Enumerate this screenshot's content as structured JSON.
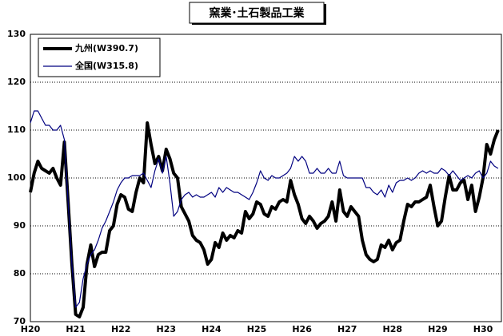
{
  "chart_data": {
    "type": "line",
    "title": "窯業･土石製品工業",
    "categories": [
      "H20",
      null,
      null,
      null,
      null,
      null,
      null,
      null,
      null,
      null,
      null,
      null,
      "H21",
      null,
      null,
      null,
      null,
      null,
      null,
      null,
      null,
      null,
      null,
      null,
      "H22",
      null,
      null,
      null,
      null,
      null,
      null,
      null,
      null,
      null,
      null,
      null,
      "H23",
      null,
      null,
      null,
      null,
      null,
      null,
      null,
      null,
      null,
      null,
      null,
      "H24",
      null,
      null,
      null,
      null,
      null,
      null,
      null,
      null,
      null,
      null,
      null,
      "H25",
      null,
      null,
      null,
      null,
      null,
      null,
      null,
      null,
      null,
      null,
      null,
      "H26",
      null,
      null,
      null,
      null,
      null,
      null,
      null,
      null,
      null,
      null,
      null,
      "H27",
      null,
      null,
      null,
      null,
      null,
      null,
      null,
      null,
      null,
      null,
      null,
      "H28",
      null,
      null,
      null,
      null,
      null,
      null,
      null,
      null,
      null,
      null,
      null,
      "H29",
      null,
      null,
      null,
      null,
      null,
      null,
      null,
      null,
      null,
      null,
      null,
      "H30",
      null,
      null,
      null,
      null
    ],
    "series": [
      {
        "name": "九州(W390.7)",
        "color": "#000000",
        "width": 4,
        "values": [
          97,
          101,
          103.5,
          102,
          101.5,
          101,
          102,
          100,
          98.5,
          107.5,
          95,
          82,
          71.5,
          71,
          73,
          82,
          86,
          81.5,
          84,
          84.5,
          84.5,
          89,
          90,
          94.5,
          96.5,
          96,
          93.5,
          93,
          97,
          100,
          99,
          111.5,
          107,
          103,
          104.5,
          101.5,
          106,
          104,
          101,
          100,
          94,
          92.5,
          91,
          88,
          87,
          86.5,
          85,
          82,
          83,
          86.5,
          85.5,
          88.5,
          87,
          88,
          87.5,
          89,
          88.5,
          93,
          91.5,
          92.5,
          95,
          94.5,
          92.5,
          92,
          94,
          93.5,
          95,
          95.5,
          95,
          99.5,
          96.5,
          94.5,
          91.5,
          90.5,
          92,
          91,
          89.5,
          90.5,
          91,
          92,
          95,
          91,
          97.5,
          93,
          92,
          94,
          93,
          92,
          87,
          84,
          83,
          82.5,
          83,
          86,
          85.5,
          87,
          85,
          86.5,
          87,
          91,
          94.5,
          94,
          95,
          95,
          95.5,
          96,
          98.5,
          94,
          90,
          91,
          96,
          100.5,
          97.5,
          97.5,
          99,
          99.5,
          95.5,
          98.5,
          93,
          96,
          100,
          107,
          105,
          108,
          110
        ]
      },
      {
        "name": "全国(W315.8)",
        "color": "#000080",
        "width": 1.2,
        "values": [
          111.5,
          114,
          114,
          112.5,
          111,
          111,
          110,
          110,
          111,
          108,
          95,
          82,
          73,
          74,
          79,
          82,
          84,
          85,
          87,
          89.5,
          91,
          93,
          95,
          97.5,
          99,
          100,
          100,
          100.5,
          100.5,
          100.5,
          101,
          99.5,
          98,
          101.5,
          104,
          101,
          104.5,
          99,
          92,
          93,
          95.5,
          96.5,
          97,
          96,
          96.5,
          96,
          96,
          96.5,
          97,
          96,
          98,
          97,
          98,
          97.5,
          97,
          97,
          96.5,
          96,
          95.5,
          97,
          99,
          101.5,
          100,
          99.5,
          100.5,
          100,
          100,
          100.5,
          101,
          102,
          104.5,
          103.5,
          104.5,
          103.5,
          101,
          101,
          102,
          101,
          101,
          102,
          101,
          101,
          103.5,
          100.5,
          100,
          100,
          100,
          100,
          100,
          98,
          98,
          97,
          96.5,
          97.5,
          96,
          98.5,
          97,
          99,
          99.5,
          99.5,
          100,
          99.5,
          100,
          101,
          101.5,
          101,
          101.5,
          101,
          101,
          102,
          101.5,
          100.5,
          101.5,
          100.5,
          99.5,
          100,
          100.5,
          100,
          101,
          101.5,
          100,
          101,
          103.5,
          102.5,
          102
        ]
      }
    ],
    "ylim": [
      70,
      130
    ],
    "yticks": [
      70,
      80,
      90,
      100,
      110,
      120,
      130
    ],
    "grid": true,
    "legend": "upper left"
  }
}
